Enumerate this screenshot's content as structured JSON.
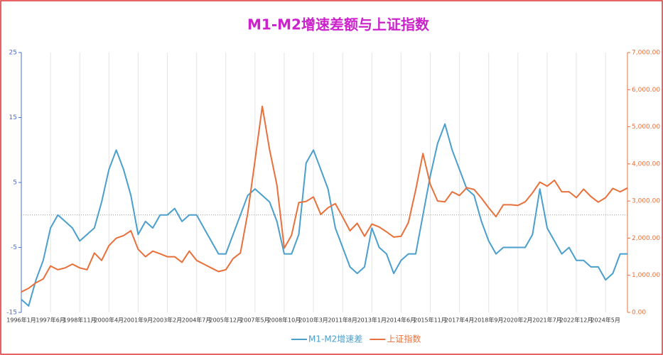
{
  "chart_data": {
    "type": "line",
    "title": "M1-M2增速差额与上证指数",
    "categories": [
      "1996年1月",
      null,
      null,
      null,
      "1997年6月",
      null,
      null,
      null,
      "1998年11月",
      null,
      null,
      null,
      "2000年4月",
      null,
      null,
      null,
      "2001年9月",
      null,
      null,
      null,
      "2003年2月",
      null,
      null,
      null,
      "2004年7月",
      null,
      null,
      null,
      "2005年12月",
      null,
      null,
      null,
      "2007年5月",
      null,
      null,
      null,
      "2008年10月",
      null,
      null,
      null,
      "2010年3月",
      null,
      null,
      null,
      "2011年8月",
      null,
      null,
      null,
      "2013年1月",
      null,
      null,
      null,
      "2014年6月",
      null,
      null,
      null,
      "2015年11月",
      null,
      null,
      null,
      "2017年4月",
      null,
      null,
      null,
      "2018年9月",
      null,
      null,
      null,
      "2020年2月",
      null,
      null,
      null,
      "2021年7月",
      null,
      null,
      null,
      "2022年12月",
      null,
      null,
      null,
      "2024年5月",
      null,
      null,
      null
    ],
    "series": [
      {
        "name": "M1-M2增速差",
        "color": "#4a9fcc",
        "values": [
          -13,
          -14,
          -10,
          -7,
          -2,
          0,
          -1,
          -2,
          -4,
          -3,
          -2,
          2,
          7,
          10,
          7,
          3,
          -3,
          -1,
          -2,
          0,
          0,
          1,
          -1,
          0,
          0,
          -2,
          -4,
          -6,
          -6,
          -3,
          0,
          3,
          4,
          3,
          2,
          -1,
          -6,
          -6,
          -3,
          8,
          10,
          7,
          4,
          -2,
          -5,
          -8,
          -9,
          -8,
          -2,
          -5,
          -6,
          -9,
          -7,
          -6,
          -6,
          0,
          6,
          11,
          14,
          10,
          7,
          4,
          3,
          -1,
          -4,
          -6,
          -5,
          -5,
          -5,
          -5,
          -3,
          4,
          -2,
          -4,
          -6,
          -5,
          -7,
          -7,
          -8,
          -8,
          -10,
          -9,
          -6,
          -6
        ]
      },
      {
        "name": "上证指数",
        "color": "#e8703a",
        "axis": "y2",
        "values": [
          550,
          650,
          800,
          900,
          1250,
          1150,
          1200,
          1300,
          1200,
          1150,
          1600,
          1400,
          1800,
          2000,
          2070,
          2200,
          1700,
          1500,
          1650,
          1580,
          1500,
          1500,
          1350,
          1650,
          1400,
          1300,
          1200,
          1100,
          1150,
          1450,
          1600,
          2670,
          4100,
          5550,
          4380,
          3430,
          1730,
          2080,
          2960,
          2990,
          3110,
          2640,
          2820,
          2930,
          2570,
          2200,
          2400,
          2050,
          2380,
          2300,
          2170,
          2030,
          2050,
          2420,
          3300,
          4280,
          3450,
          3000,
          2980,
          3250,
          3150,
          3360,
          3310,
          3080,
          2820,
          2580,
          2900,
          2900,
          2880,
          2980,
          3220,
          3510,
          3400,
          3560,
          3250,
          3250,
          3090,
          3320,
          3120,
          2970,
          3090,
          3340,
          3250,
          3350
        ]
      }
    ],
    "ylim": [
      -15,
      25
    ],
    "yticks": [
      -15,
      -5,
      5,
      15,
      25
    ],
    "y2lim": [
      0,
      7000
    ],
    "y2ticks": [
      {
        "value": 0,
        "label": "0.00"
      },
      {
        "value": 1000,
        "label": "1,000.00"
      },
      {
        "value": 2000,
        "label": "2,000.00"
      },
      {
        "value": 3000,
        "label": "3,000.00"
      },
      {
        "value": 4000,
        "label": "4,000.00"
      },
      {
        "value": 5000,
        "label": "5,000.00"
      },
      {
        "value": 6000,
        "label": "6,000.00"
      },
      {
        "value": 7000,
        "label": "7,000.00"
      }
    ],
    "hline": 0
  }
}
